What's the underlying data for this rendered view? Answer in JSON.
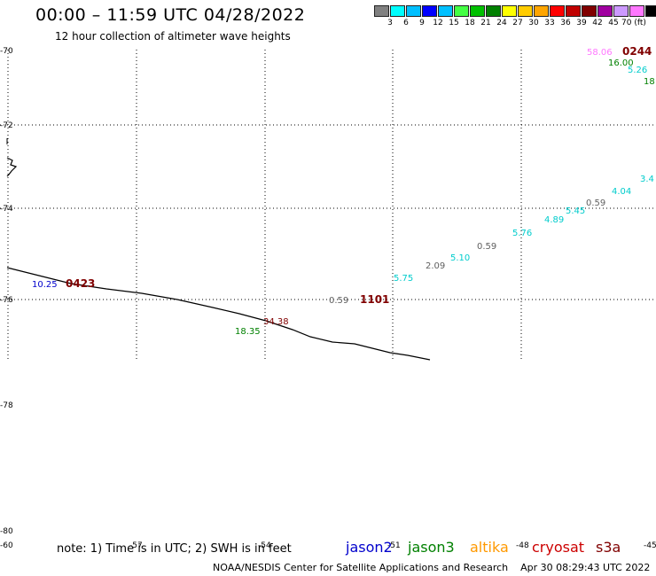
{
  "header": {
    "title": "00:00 – 11:59 UTC 04/28/2022",
    "subtitle": "12 hour collection of altimeter wave heights"
  },
  "colorbar": {
    "colors": [
      "#808080",
      "#00ffff",
      "#00bfff",
      "#0000ff",
      "#00c0ff",
      "#44ff44",
      "#00c000",
      "#008000",
      "#ffff00",
      "#ffcc00",
      "#ffa500",
      "#ff0000",
      "#c00000",
      "#800000",
      "#a000a0",
      "#cc99ff",
      "#ff77ff",
      "#000000"
    ],
    "labels": [
      "3",
      "6",
      "9",
      "12",
      "15",
      "18",
      "21",
      "24",
      "27",
      "30",
      "33",
      "36",
      "39",
      "42",
      "45",
      "70 (ft)"
    ]
  },
  "map": {
    "lat_labels": [
      "-70",
      "-72",
      "-74",
      "-76",
      "-78",
      "-80"
    ],
    "lon_labels": [
      "-60",
      "-57",
      "-54",
      "-51",
      "-48",
      "-45"
    ],
    "measurements": [
      {
        "text": "58.06",
        "color": "#ff77ff"
      },
      {
        "text": "16.00",
        "color": "#008000"
      },
      {
        "text": "5.26",
        "color": "#00cccc"
      },
      {
        "text": "18",
        "color": "#008000"
      },
      {
        "text": "3.4",
        "color": "#00cccc"
      },
      {
        "text": "4.04",
        "color": "#00cccc"
      },
      {
        "text": "0.59",
        "color": "#606060"
      },
      {
        "text": "5.45",
        "color": "#00cccc"
      },
      {
        "text": "4.89",
        "color": "#00cccc"
      },
      {
        "text": "5.76",
        "color": "#00cccc"
      },
      {
        "text": "0.59",
        "color": "#606060"
      },
      {
        "text": "5.10",
        "color": "#00cccc"
      },
      {
        "text": "2.09",
        "color": "#606060"
      },
      {
        "text": "5.75",
        "color": "#00cccc"
      },
      {
        "text": "0.59",
        "color": "#606060"
      },
      {
        "text": "10.25",
        "color": "#0000cc"
      },
      {
        "text": "34.38",
        "color": "#800000"
      },
      {
        "text": "18.35",
        "color": "#008000"
      }
    ],
    "time_labels": [
      "0244",
      "0423",
      "1101"
    ]
  },
  "footer": {
    "note": "note: 1) Time is in UTC; 2) SWH is in feet",
    "satellites": [
      {
        "name": "jason2",
        "color": "#0000cc"
      },
      {
        "name": "jason3",
        "color": "#008000"
      },
      {
        "name": "altika",
        "color": "#ff9900"
      },
      {
        "name": "cryosat",
        "color": "#cc0000"
      },
      {
        "name": "s3a",
        "color": "#800000"
      }
    ],
    "credit": "NOAA/NESDIS Center for Satellite Applications and Research    Apr 30 08:29:43 UTC 2022"
  }
}
